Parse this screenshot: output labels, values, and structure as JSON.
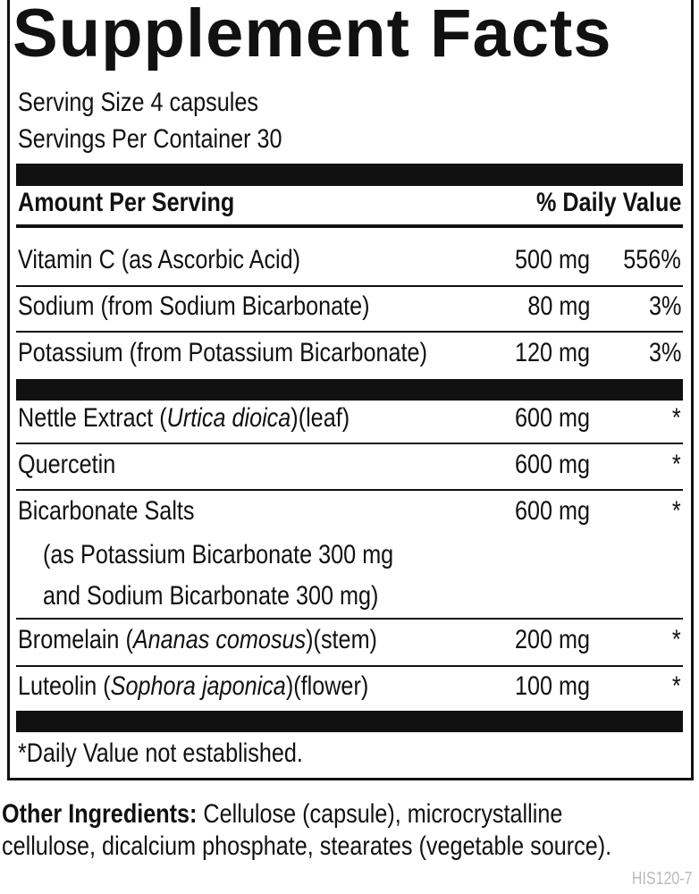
{
  "title": "Supplement Facts",
  "serving_size": "Serving Size 4 capsules",
  "servings_per_container": "Servings Per Container 30",
  "header": {
    "amount": "Amount Per Serving",
    "dv": "% Daily Value"
  },
  "nutrients": [
    {
      "name": "Vitamin C (as Ascorbic Acid)",
      "amount": "500 mg",
      "dv": "556%"
    },
    {
      "name": "Sodium (from Sodium Bicarbonate)",
      "amount": "80 mg",
      "dv": "3%"
    },
    {
      "name": "Potassium (from Potassium Bicarbonate)",
      "amount": "120 mg",
      "dv": "3%"
    }
  ],
  "other": [
    {
      "name": "Nettle Extract (",
      "italic": "Urtica dioica",
      "suffix": ")(leaf)",
      "amount": "600 mg",
      "dv": "*"
    },
    {
      "name": "Quercetin",
      "amount": "600 mg",
      "dv": "*"
    },
    {
      "name": "Bicarbonate Salts",
      "sub1": "(as Potassium Bicarbonate 300 mg",
      "sub2": "and Sodium Bicarbonate 300 mg)",
      "amount": "600 mg",
      "dv": "*"
    },
    {
      "name": "Bromelain (",
      "italic": "Ananas comosus",
      "suffix": ")(stem)",
      "amount": "200 mg",
      "dv": "*"
    },
    {
      "name": "Luteolin (",
      "italic": "Sophora japonica",
      "suffix": ")(flower)",
      "amount": "100 mg",
      "dv": "*"
    }
  ],
  "footnote": "*Daily Value not established.",
  "other_ingredients": {
    "label": "Other Ingredients:",
    "line1": " Cellulose (capsule), microcrystalline",
    "line2": "cellulose, dicalcium phosphate, stearates (vegetable source)."
  },
  "code": "HIS120-7"
}
